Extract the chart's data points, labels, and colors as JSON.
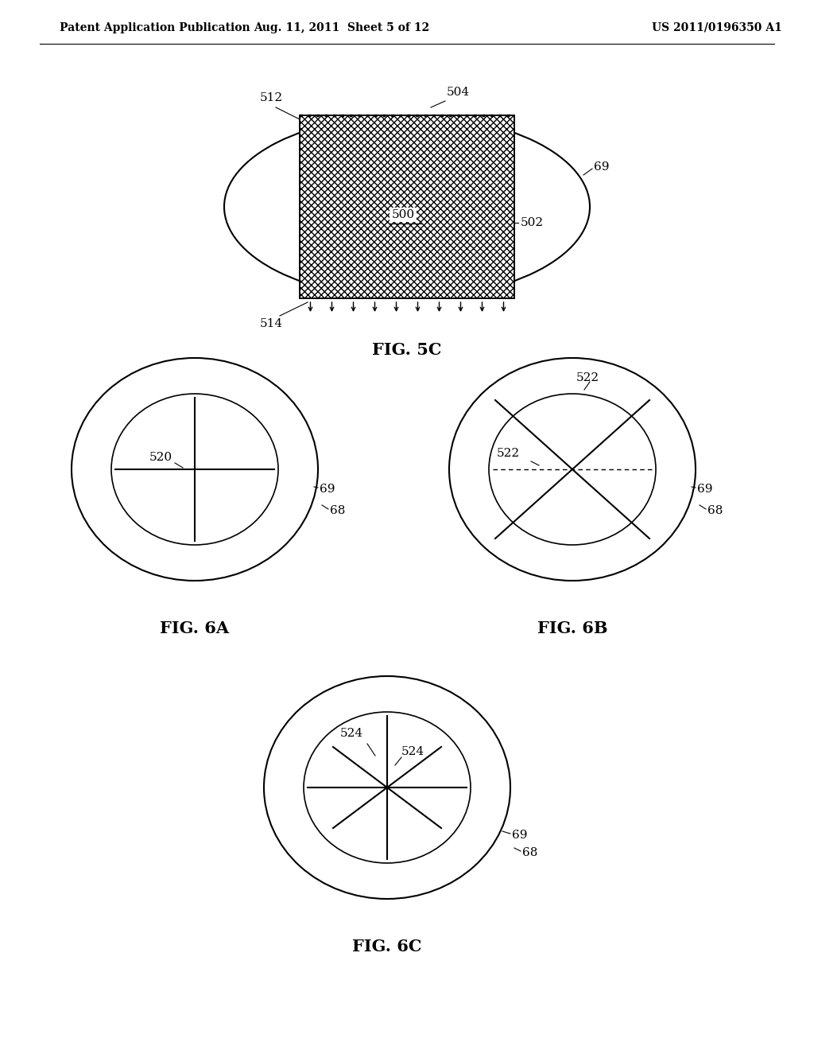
{
  "bg_color": "#ffffff",
  "header_left": "Patent Application Publication",
  "header_mid": "Aug. 11, 2011  Sheet 5 of 12",
  "header_right": "US 2011/0196350 A1",
  "page_width": 10.24,
  "page_height": 13.2,
  "dpi": 100
}
